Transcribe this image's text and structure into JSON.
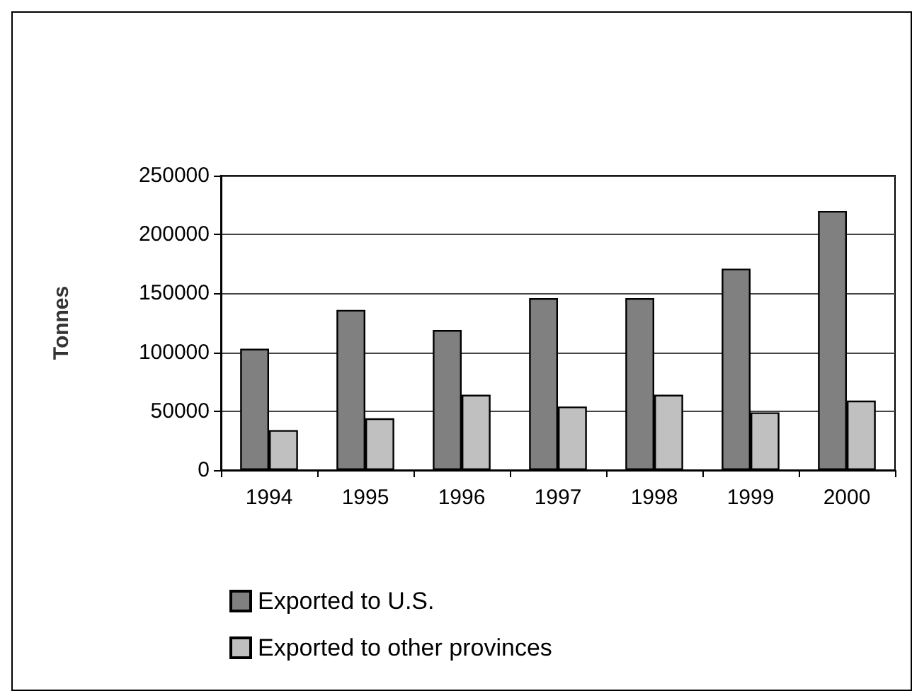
{
  "chart_data": {
    "type": "bar",
    "ylabel": "Tonnes",
    "categories": [
      "1994",
      "1995",
      "1996",
      "1997",
      "1998",
      "1999",
      "2000"
    ],
    "series": [
      {
        "name": "Exported to U.S.",
        "color": "#808080",
        "values": [
          103000,
          136000,
          119000,
          146000,
          146000,
          171000,
          220000
        ]
      },
      {
        "name": "Exported to other provinces",
        "color": "#c0c0c0",
        "values": [
          34000,
          44000,
          64000,
          54000,
          64000,
          49000,
          59000
        ]
      }
    ],
    "ylim": [
      0,
      250000
    ],
    "yticks": [
      0,
      50000,
      100000,
      150000,
      200000,
      250000
    ],
    "grid": "y",
    "legend": "bottom"
  }
}
